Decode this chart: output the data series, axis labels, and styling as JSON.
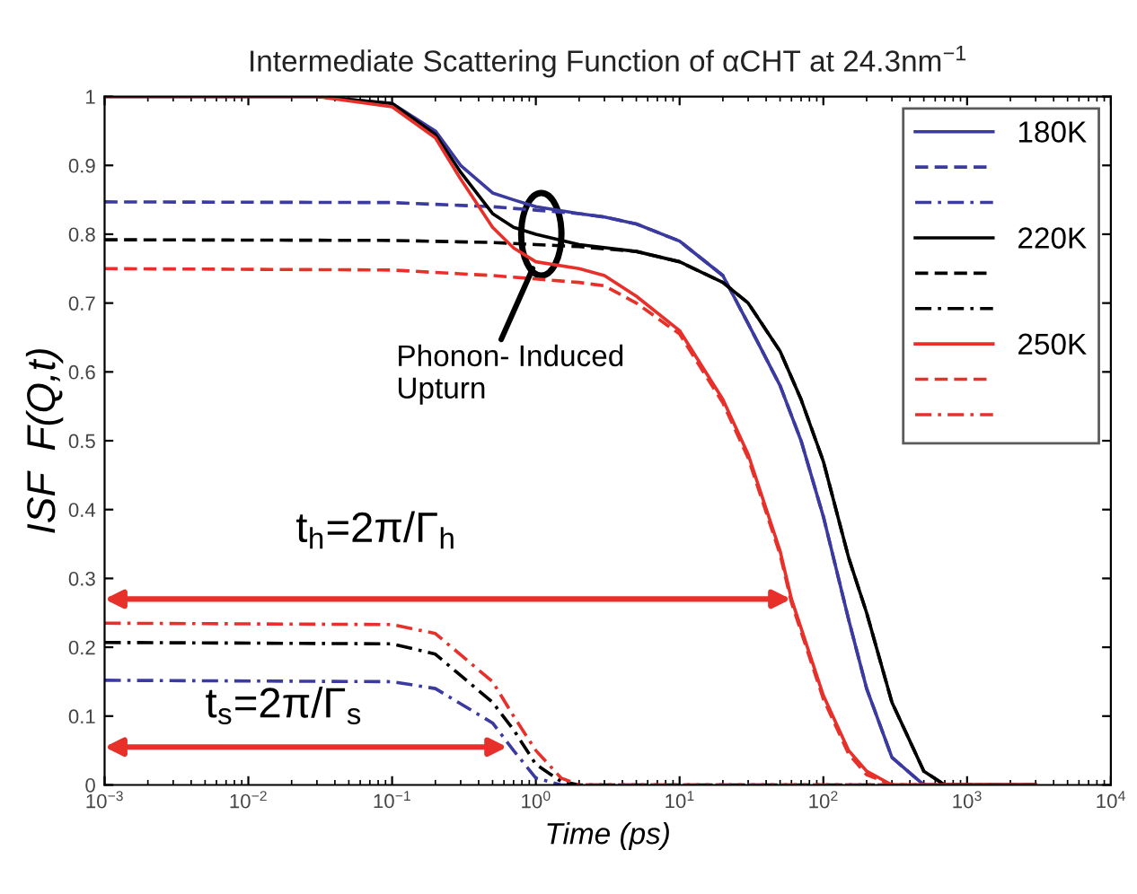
{
  "chart_data": {
    "type": "line",
    "title": "Intermediate Scattering Function of αCHT at 24.3nm$^{−1}$",
    "xlabel": "Time (ps)",
    "ylabel": "ISF  F(Q,t)",
    "log": "x",
    "xlim": [
      0.001,
      10000
    ],
    "ylim": [
      0,
      1
    ],
    "xticks": [
      {
        "value": 0.001,
        "label": "10$^{−3}$"
      },
      {
        "value": 0.01,
        "label": "10$^{−2}$"
      },
      {
        "value": 0.1,
        "label": "10$^{−1}$"
      },
      {
        "value": 1,
        "label": "10$^{0}$"
      },
      {
        "value": 10,
        "label": "10$^{1}$"
      },
      {
        "value": 100,
        "label": "10$^{2}$"
      },
      {
        "value": 1000,
        "label": "10$^{3}$"
      },
      {
        "value": 10000,
        "label": "10$^{4}$"
      }
    ],
    "yticks": [
      0,
      0.1,
      0.2,
      0.3,
      0.4,
      0.5,
      0.6,
      0.7,
      0.8,
      0.9,
      1
    ],
    "grid": false,
    "legend": "top right",
    "series": [
      {
        "name": "180K",
        "color": "#3a3aa0",
        "line_style": "solid",
        "x": [
          0.001,
          0.03,
          0.1,
          0.2,
          0.3,
          0.5,
          0.7,
          1,
          2,
          3,
          5,
          10,
          20,
          30,
          50,
          70,
          100,
          150,
          200,
          300,
          500,
          3000
        ],
        "values": [
          1,
          1,
          0.99,
          0.95,
          0.9,
          0.86,
          0.85,
          0.84,
          0.83,
          0.825,
          0.815,
          0.79,
          0.74,
          0.67,
          0.58,
          0.5,
          0.39,
          0.24,
          0.14,
          0.04,
          0,
          0
        ]
      },
      {
        "color": "#3a3aa0",
        "line_style": "dashed",
        "x": [
          0.001,
          0.1,
          0.5,
          1,
          2,
          3,
          5,
          10,
          20,
          30,
          50,
          70,
          100,
          150,
          200,
          300,
          500,
          3000
        ],
        "values": [
          0.847,
          0.846,
          0.84,
          0.835,
          0.83,
          0.825,
          0.815,
          0.79,
          0.74,
          0.67,
          0.58,
          0.5,
          0.39,
          0.24,
          0.14,
          0.04,
          0,
          0
        ]
      },
      {
        "color": "#3a3aa0",
        "line_style": "dashdot",
        "x": [
          0.001,
          0.1,
          0.2,
          0.5,
          0.7,
          1,
          1.5,
          2,
          3000
        ],
        "values": [
          0.152,
          0.15,
          0.14,
          0.09,
          0.05,
          0.01,
          0,
          0,
          0
        ]
      },
      {
        "name": "220K",
        "color": "#000000",
        "line_style": "solid",
        "x": [
          0.001,
          0.03,
          0.1,
          0.2,
          0.3,
          0.5,
          0.7,
          1,
          2,
          5,
          10,
          20,
          30,
          50,
          70,
          100,
          150,
          200,
          300,
          500,
          700,
          3000
        ],
        "values": [
          1,
          1,
          0.99,
          0.945,
          0.89,
          0.83,
          0.81,
          0.8,
          0.785,
          0.775,
          0.76,
          0.73,
          0.7,
          0.63,
          0.56,
          0.47,
          0.33,
          0.25,
          0.12,
          0.02,
          0,
          0
        ]
      },
      {
        "color": "#000000",
        "line_style": "dashed",
        "x": [
          0.001,
          0.1,
          0.5,
          1,
          2,
          5,
          10,
          20,
          30,
          50,
          70,
          100,
          150,
          200,
          300,
          500,
          700,
          3000
        ],
        "values": [
          0.792,
          0.791,
          0.788,
          0.785,
          0.782,
          0.775,
          0.76,
          0.73,
          0.7,
          0.63,
          0.56,
          0.47,
          0.33,
          0.25,
          0.12,
          0.02,
          0,
          0
        ]
      },
      {
        "color": "#000000",
        "line_style": "dashdot",
        "x": [
          0.001,
          0.1,
          0.2,
          0.5,
          0.7,
          1,
          1.5,
          2,
          3000
        ],
        "values": [
          0.207,
          0.205,
          0.19,
          0.12,
          0.08,
          0.03,
          0.005,
          0,
          0
        ]
      },
      {
        "name": "250K",
        "color": "#e8302a",
        "line_style": "solid",
        "x": [
          0.001,
          0.03,
          0.1,
          0.2,
          0.3,
          0.5,
          0.7,
          1,
          2,
          3,
          5,
          10,
          20,
          30,
          50,
          60,
          100,
          150,
          200,
          300,
          3000
        ],
        "values": [
          1,
          1,
          0.985,
          0.94,
          0.88,
          0.81,
          0.78,
          0.76,
          0.75,
          0.74,
          0.71,
          0.66,
          0.56,
          0.48,
          0.34,
          0.27,
          0.13,
          0.05,
          0.02,
          0,
          0
        ]
      },
      {
        "color": "#e8302a",
        "line_style": "dashed",
        "x": [
          0.001,
          0.1,
          0.5,
          1,
          2,
          3,
          5,
          10,
          20,
          30,
          50,
          60,
          100,
          150,
          200,
          300,
          3000
        ],
        "values": [
          0.75,
          0.748,
          0.74,
          0.735,
          0.73,
          0.725,
          0.7,
          0.655,
          0.555,
          0.475,
          0.335,
          0.265,
          0.125,
          0.045,
          0.015,
          0,
          0
        ]
      },
      {
        "color": "#e8302a",
        "line_style": "dashdot",
        "x": [
          0.001,
          0.1,
          0.2,
          0.5,
          0.7,
          1,
          1.5,
          2,
          3000
        ],
        "values": [
          0.235,
          0.233,
          0.22,
          0.15,
          0.1,
          0.05,
          0.01,
          0,
          0
        ]
      }
    ],
    "annotations": [
      "t$_{h}$=2π/Γ$_{h}$",
      "t$_{s}$=2π/Γ$_{s}$",
      {
        "text": "Phonon- Induced\nUpturn",
        "x": 0.95,
        "y": 0.75
      }
    ]
  }
}
